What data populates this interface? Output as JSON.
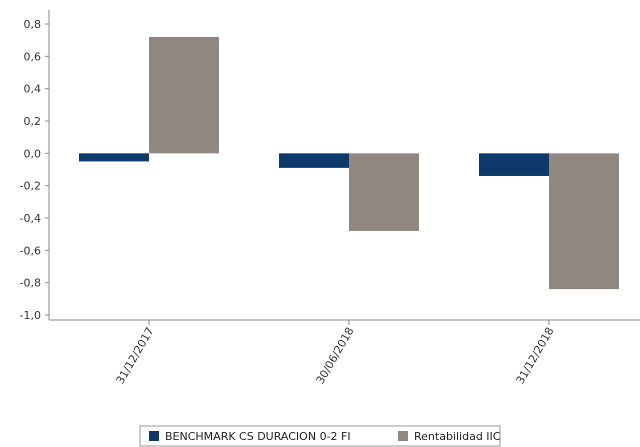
{
  "chart_data": {
    "type": "bar",
    "categories": [
      "31/12/2017",
      "30/06/2018",
      "31/12/2018"
    ],
    "series": [
      {
        "name": "BENCHMARK CS DURACION 0-2 FI",
        "values": [
          -0.05,
          -0.09,
          -0.14
        ],
        "color": "#0d3a6b"
      },
      {
        "name": "Rentabilidad IIC",
        "values": [
          0.72,
          -0.48,
          -0.84
        ],
        "color": "#908880"
      }
    ],
    "ylim": [
      -1.0,
      0.8
    ],
    "yticks": [
      "0,8",
      "0,6",
      "0,4",
      "0,2",
      "0,0",
      "-0,2",
      "-0,4",
      "-0,6",
      "-0,8",
      "-1,0"
    ],
    "ytick_values": [
      0.8,
      0.6,
      0.4,
      0.2,
      0.0,
      -0.2,
      -0.4,
      -0.6,
      -0.8,
      -1.0
    ],
    "grid": false,
    "legend_position": "bottom",
    "title": "",
    "xlabel": "",
    "ylabel": ""
  }
}
